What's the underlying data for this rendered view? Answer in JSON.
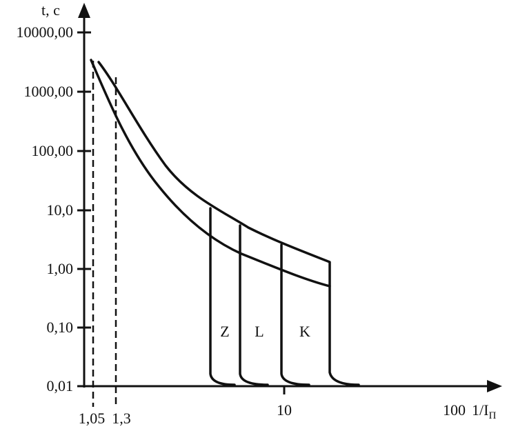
{
  "y_axis": {
    "label": "t, c",
    "tick_labels": [
      "10000,00",
      "1000,00",
      "100,00",
      "10,0",
      "1,00",
      "0,10",
      "0,01"
    ]
  },
  "x_axis": {
    "label": "1/I",
    "label_subscript": "П",
    "tick_labels": [
      "1,05",
      "1,3",
      "10",
      "100"
    ]
  },
  "curve_labels": [
    "Z",
    "L",
    "K"
  ]
}
